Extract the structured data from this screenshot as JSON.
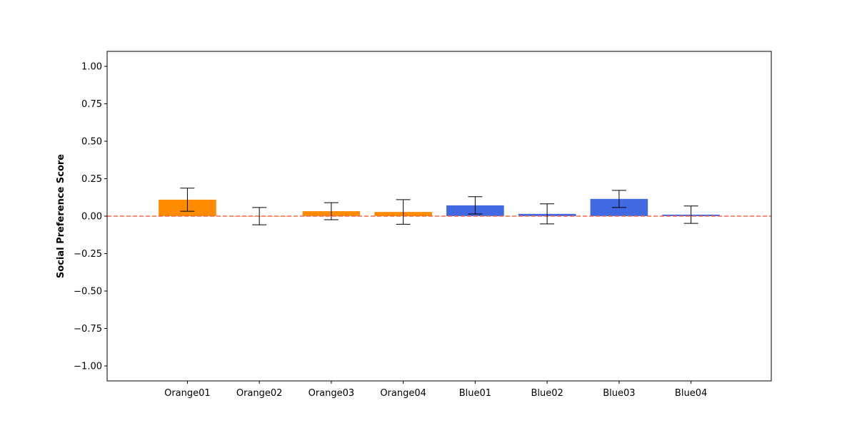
{
  "chart_data": {
    "type": "bar",
    "title": "",
    "xlabel": "",
    "ylabel": "Social Preference Score",
    "ylim": [
      -1.1,
      1.1
    ],
    "yticks": [
      -1.0,
      -0.75,
      -0.5,
      -0.25,
      0.0,
      0.25,
      0.5,
      0.75,
      1.0
    ],
    "ytick_labels": [
      "−1.00",
      "−0.75",
      "−0.50",
      "−0.25",
      "0.00",
      "0.25",
      "0.50",
      "0.75",
      "1.00"
    ],
    "categories": [
      "Orange01",
      "Orange02",
      "Orange03",
      "Orange04",
      "Blue01",
      "Blue02",
      "Blue03",
      "Blue04"
    ],
    "values": [
      0.11,
      0.0,
      0.033,
      0.028,
      0.072,
      0.015,
      0.115,
      0.01
    ],
    "error": [
      0.077,
      0.058,
      0.057,
      0.082,
      0.058,
      0.067,
      0.057,
      0.058
    ],
    "bar_colors": [
      "#ff8c00",
      "#ff8c00",
      "#ff8c00",
      "#ff8c00",
      "#4169e1",
      "#4169e1",
      "#4169e1",
      "#4169e1"
    ],
    "reference_line": {
      "y": 0.0,
      "color": "#ff6347",
      "style": "dashed"
    },
    "grid": false,
    "legend": "none"
  }
}
